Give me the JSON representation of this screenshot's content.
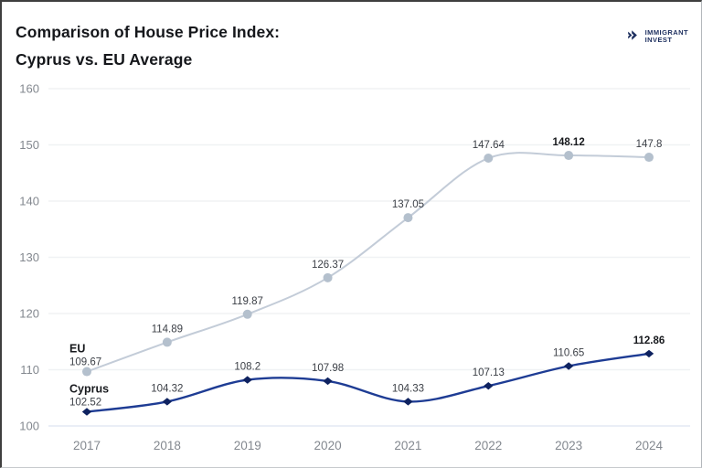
{
  "header": {
    "title_line1": "Comparison of House Price Index:",
    "title_line2": "Cyprus vs. EU Average",
    "logo": {
      "name_line1": "IMMIGRANT",
      "name_line2": "INVEST",
      "color": "#1c2e5e"
    }
  },
  "chart_data": {
    "type": "line",
    "title": "Comparison of House Price Index: Cyprus vs. EU Average",
    "x_labels": [
      "2017",
      "2018",
      "2019",
      "2020",
      "2021",
      "2022",
      "2023",
      "2024"
    ],
    "series": [
      {
        "name": "EU",
        "marker": "circle",
        "line_color": "#c3ccd8",
        "marker_color": "#b4c0cd",
        "values": [
          109.67,
          114.89,
          119.87,
          126.37,
          137.05,
          147.64,
          148.12,
          147.8
        ],
        "bold_value_indices": [
          6
        ]
      },
      {
        "name": "Cyprus",
        "marker": "diamond",
        "line_color": "#1e3c94",
        "marker_color": "#0e2260",
        "values": [
          102.52,
          104.32,
          108.2,
          107.98,
          104.33,
          107.13,
          110.65,
          112.86
        ],
        "bold_value_indices": [
          7
        ]
      }
    ],
    "ylim": [
      100,
      160
    ],
    "ytick_step": 10,
    "xlabel": "",
    "ylabel": "",
    "grid": true,
    "legend_position": "inline-at-first-point",
    "grid_color": "#f0f2f4",
    "baseline_color": "#e3e9f3"
  }
}
